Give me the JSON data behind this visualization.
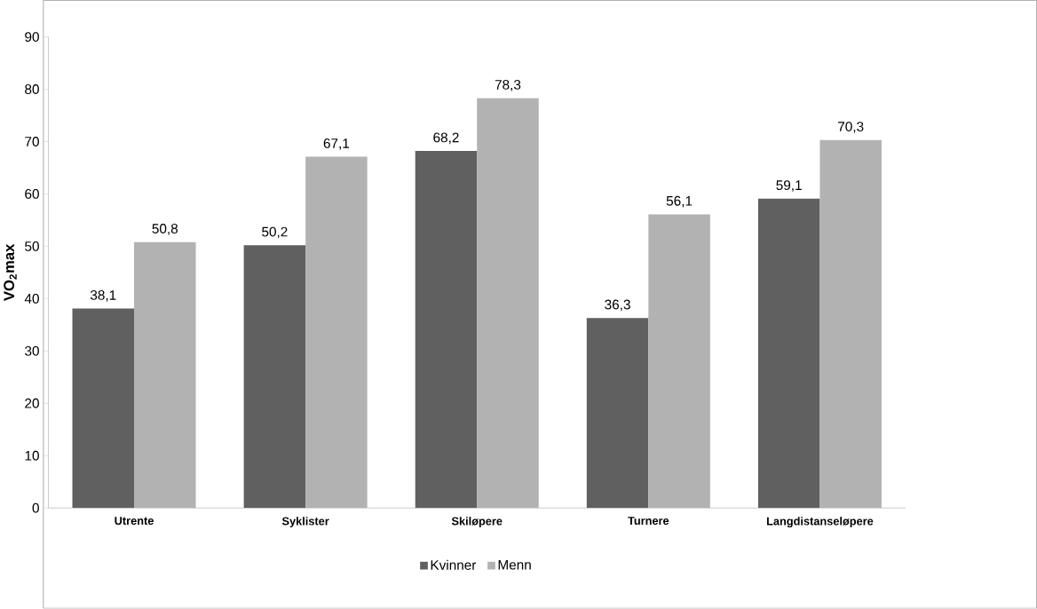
{
  "chart_data": {
    "type": "bar",
    "ylabel": "VO$_{2}$max",
    "categories": [
      "Utrente",
      "Syklister",
      "Skiløpere",
      "Turnere",
      "Langdistanseløpere"
    ],
    "series": [
      {
        "name": "Kvinner",
        "color": "#606060",
        "values": [
          38.1,
          50.2,
          68.2,
          36.3,
          59.1
        ],
        "value_labels": [
          "38,1",
          "50,2",
          "68,2",
          "36,3",
          "59,1"
        ]
      },
      {
        "name": "Menn",
        "color": "#b2b2b2",
        "values": [
          50.8,
          67.1,
          78.3,
          56.1,
          70.3
        ],
        "value_labels": [
          "50,8",
          "67,1",
          "78,3",
          "56,1",
          "70,3"
        ]
      }
    ],
    "ylim": [
      0,
      90
    ],
    "yticks": [
      0,
      10,
      20,
      30,
      40,
      50,
      60,
      70,
      80,
      90
    ],
    "legend": "bottom",
    "grid": false
  }
}
